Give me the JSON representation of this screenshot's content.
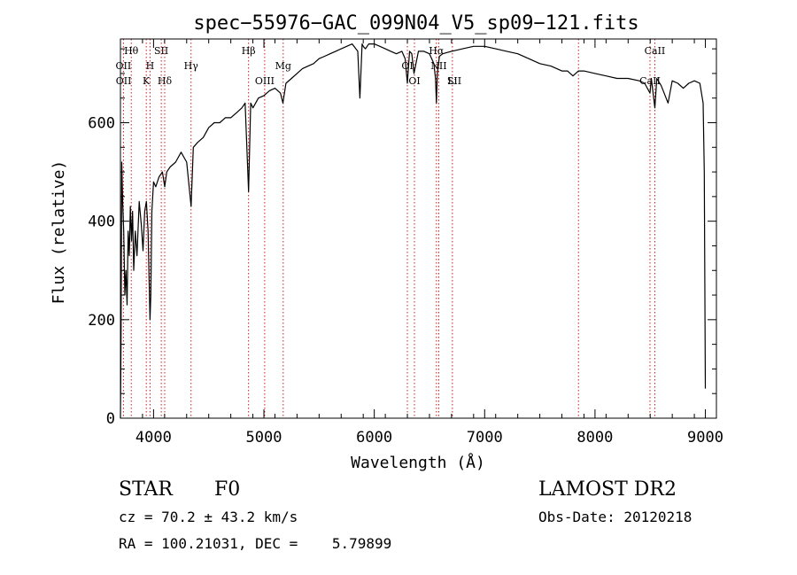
{
  "chart_data": {
    "type": "line",
    "title": "spec−55976−GAC_099N04_V5_sp09−121.fits",
    "xlabel": "Wavelength (Å)",
    "ylabel": "Flux (relative)",
    "xlim": [
      3700,
      9100
    ],
    "ylim": [
      0,
      770
    ],
    "x_ticks": [
      4000,
      5000,
      6000,
      7000,
      8000,
      9000
    ],
    "y_ticks": [
      0,
      200,
      400,
      600
    ],
    "grid": false,
    "series": [
      {
        "line_color": "#000000",
        "x": [
          3700,
          3705,
          3712,
          3720,
          3730,
          3740,
          3750,
          3760,
          3770,
          3780,
          3790,
          3800,
          3810,
          3820,
          3835,
          3850,
          3870,
          3890,
          3905,
          3920,
          3935,
          3950,
          3960,
          3968,
          3975,
          3985,
          4000,
          4020,
          4050,
          4080,
          4101,
          4120,
          4150,
          4200,
          4250,
          4300,
          4340,
          4360,
          4400,
          4450,
          4500,
          4550,
          4600,
          4650,
          4700,
          4750,
          4800,
          4830,
          4861,
          4880,
          4900,
          4950,
          5000,
          5050,
          5100,
          5150,
          5172,
          5200,
          5250,
          5300,
          5350,
          5400,
          5450,
          5500,
          5550,
          5600,
          5650,
          5700,
          5750,
          5800,
          5850,
          5870,
          5890,
          5900,
          5920,
          5950,
          6000,
          6050,
          6100,
          6150,
          6200,
          6250,
          6280,
          6300,
          6320,
          6340,
          6360,
          6400,
          6450,
          6500,
          6540,
          6555,
          6563,
          6572,
          6590,
          6620,
          6700,
          6800,
          6900,
          7000,
          7100,
          7200,
          7300,
          7400,
          7500,
          7600,
          7700,
          7750,
          7800,
          7850,
          7900,
          8000,
          8100,
          8200,
          8300,
          8400,
          8450,
          8498,
          8510,
          8542,
          8560,
          8600,
          8662,
          8700,
          8750,
          8800,
          8850,
          8900,
          8950,
          8980,
          8990,
          9000
        ],
        "y": [
          0,
          140,
          520,
          440,
          380,
          250,
          300,
          230,
          380,
          330,
          430,
          360,
          420,
          300,
          380,
          330,
          440,
          390,
          340,
          420,
          440,
          380,
          280,
          200,
          250,
          420,
          480,
          470,
          490,
          500,
          470,
          500,
          510,
          520,
          540,
          520,
          430,
          550,
          560,
          570,
          590,
          600,
          600,
          610,
          610,
          620,
          630,
          640,
          460,
          640,
          630,
          650,
          655,
          665,
          670,
          660,
          640,
          680,
          690,
          700,
          710,
          715,
          720,
          730,
          735,
          740,
          745,
          750,
          755,
          760,
          745,
          650,
          760,
          755,
          750,
          760,
          760,
          755,
          750,
          745,
          740,
          745,
          730,
          680,
          745,
          740,
          700,
          745,
          745,
          740,
          720,
          690,
          640,
          700,
          735,
          740,
          745,
          750,
          755,
          755,
          750,
          745,
          740,
          730,
          720,
          715,
          705,
          705,
          695,
          705,
          705,
          700,
          695,
          690,
          690,
          685,
          680,
          660,
          690,
          630,
          690,
          675,
          640,
          685,
          680,
          670,
          680,
          685,
          680,
          640,
          500,
          60
        ]
      }
    ],
    "annotations": [
      {
        "label": "Hθ",
        "x": 3798,
        "row": 1
      },
      {
        "label": "SII",
        "x": 4070,
        "row": 1
      },
      {
        "label": "Hβ",
        "x": 4861,
        "row": 1
      },
      {
        "label": "OI",
        "x": 6300,
        "row": 2
      },
      {
        "label": "Hα",
        "x": 6563,
        "row": 1
      },
      {
        "label": "CaII",
        "x": 8542,
        "row": 1
      },
      {
        "label": "OII",
        "x": 3727,
        "row": 2
      },
      {
        "label": "H",
        "x": 3968,
        "row": 2
      },
      {
        "label": "Hγ",
        "x": 4340,
        "row": 2
      },
      {
        "label": "Mg",
        "x": 5175,
        "row": 2
      },
      {
        "label": "NII",
        "x": 6584,
        "row": 2
      },
      {
        "label": "SII",
        "x": 6725,
        "row": 3
      },
      {
        "label": "OII",
        "x": 3729,
        "row": 3
      },
      {
        "label": "K",
        "x": 3934,
        "row": 3
      },
      {
        "label": "Hδ",
        "x": 4101,
        "row": 3
      },
      {
        "label": "OIII",
        "x": 5007,
        "row": 3
      },
      {
        "label": "OI",
        "x": 6364,
        "row": 3
      },
      {
        "label": "Li",
        "x": 6708,
        "row": 3
      },
      {
        "label": "CaII",
        "x": 8498,
        "row": 3
      }
    ],
    "line_markers": [
      3727,
      3798,
      3934,
      3968,
      4070,
      4101,
      4340,
      4861,
      5007,
      5175,
      6300,
      6364,
      6563,
      6584,
      6708,
      7850,
      8498,
      8542
    ],
    "marker_color": "#cc0000"
  },
  "info": {
    "class_label": "STAR",
    "subclass": "F0",
    "survey": "LAMOST DR2",
    "cz_text": "cz = 70.2 ± 43.2 km/s",
    "obs_date_text": "Obs-Date: 20120218",
    "radec_text": "RA = 100.21031, DEC =    5.79899"
  }
}
